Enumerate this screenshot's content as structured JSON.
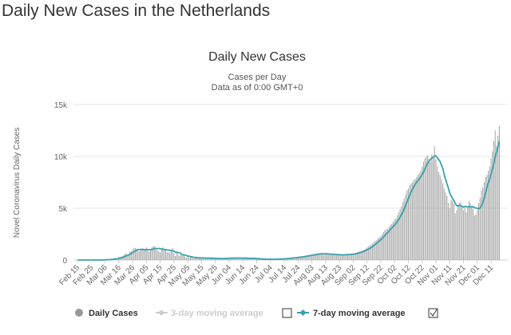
{
  "page": {
    "title": "Daily New Cases in the Netherlands"
  },
  "chart_data": {
    "type": "bar",
    "title": "Daily New Cases",
    "subtitle": "Cases per Day",
    "subtitle2": "Data as of 0:00 GMT+0",
    "ylabel": "Novel Coronavirus Daily Cases",
    "ylim": [
      0,
      15000
    ],
    "yticks": [
      0,
      5000,
      10000,
      15000
    ],
    "ytick_labels": [
      "0",
      "5k",
      "10k",
      "15k"
    ],
    "grid": true,
    "start_date": "Feb 15",
    "end_date": "Dec 17",
    "xtick_labels": [
      "Feb 15",
      "Feb 25",
      "Mar 06",
      "Mar 16",
      "Mar 26",
      "Apr 05",
      "Apr 15",
      "Apr 25",
      "May 05",
      "May 15",
      "May 25",
      "Jun 04",
      "Jun 14",
      "Jun 24",
      "Jul 04",
      "Jul 14",
      "Jul 24",
      "Aug 03",
      "Aug 13",
      "Aug 23",
      "Sep 02",
      "Sep 12",
      "Sep 22",
      "Oct 02",
      "Oct 12",
      "Oct 22",
      "Nov 01",
      "Nov 11",
      "Nov 21",
      "Dec 01",
      "Dec 11"
    ],
    "daily_cases": [
      0,
      0,
      0,
      0,
      0,
      0,
      0,
      0,
      0,
      0,
      0,
      0,
      1,
      2,
      3,
      4,
      6,
      10,
      18,
      25,
      44,
      60,
      77,
      56,
      61,
      121,
      111,
      190,
      155,
      176,
      278,
      292,
      346,
      409,
      534,
      637,
      573,
      545,
      811,
      852,
      1019,
      1172,
      1159,
      1104,
      884,
      845,
      1019,
      1083,
      1026,
      904,
      1224,
      952,
      777,
      969,
      1213,
      1335,
      1316,
      1174,
      964,
      868,
      734,
      1061,
      1235,
      1066,
      1066,
      750,
      729,
      729,
      887,
      1140,
      655,
      400,
      710,
      570,
      400,
      514,
      475,
      445,
      335,
      199,
      387,
      232,
      319,
      232,
      155,
      245,
      161,
      196,
      188,
      227,
      210,
      180,
      199,
      125,
      154,
      235,
      177,
      174,
      142,
      162,
      110,
      120,
      180,
      150,
      125,
      176,
      150,
      130,
      140,
      200,
      230,
      190,
      180,
      160,
      170,
      220,
      170,
      250,
      180,
      140,
      150,
      140,
      200,
      190,
      160,
      140,
      170,
      160,
      120,
      130,
      110,
      100,
      90,
      80,
      70,
      90,
      80,
      60,
      70,
      90,
      80,
      70,
      60,
      90,
      80,
      100,
      110,
      120,
      110,
      130,
      140,
      160,
      170,
      180,
      200,
      220,
      230,
      250,
      270,
      280,
      300,
      320,
      340,
      360,
      380,
      400,
      420,
      450,
      480,
      500,
      520,
      550,
      580,
      600,
      620,
      650,
      600,
      610,
      590,
      580,
      600,
      570,
      560,
      550,
      520,
      540,
      530,
      510,
      500,
      480,
      490,
      500,
      510,
      520,
      530,
      540,
      550,
      560,
      580,
      600,
      620,
      650,
      700,
      750,
      800,
      850,
      900,
      950,
      1000,
      1100,
      1200,
      1300,
      1400,
      1500,
      1600,
      1700,
      1850,
      1950,
      2100,
      2200,
      2300,
      2500,
      2700,
      2900,
      2950,
      3000,
      3200,
      3400,
      3500,
      3700,
      3900,
      4000,
      4300,
      4600,
      4900,
      5200,
      5600,
      5900,
      6300,
      6700,
      6900,
      7200,
      7400,
      7500,
      7700,
      7800,
      8000,
      8200,
      8400,
      8600,
      9000,
      9500,
      9800,
      10000,
      10100,
      9800,
      9500,
      10200,
      9900,
      11000,
      9700,
      9000,
      8500,
      8200,
      7800,
      7400,
      6900,
      6500,
      6200,
      5500,
      5000,
      5800,
      5700,
      5400,
      4500,
      4800,
      5300,
      5500,
      5600,
      5200,
      4800,
      5000,
      4600,
      5100,
      5700,
      5500,
      5200,
      4900,
      4300,
      4400,
      4800,
      5500,
      6000,
      6700,
      7000,
      7500,
      8000,
      8200,
      8600,
      9000,
      9800,
      10500,
      11500,
      12500,
      11000,
      12000,
      12900
    ],
    "legend": {
      "placement": "bottom",
      "items": [
        {
          "label": "Daily Cases",
          "color": "#999999",
          "enabled": true
        },
        {
          "label": "3-day moving average",
          "color": "#cccccc",
          "enabled": false
        },
        {
          "label": "7-day moving average",
          "color": "#3a9fad",
          "enabled": true
        }
      ]
    },
    "colors": {
      "bars": "#aaaaaa",
      "avg7": "#3a9fad",
      "grid": "#e6e6e6"
    }
  }
}
